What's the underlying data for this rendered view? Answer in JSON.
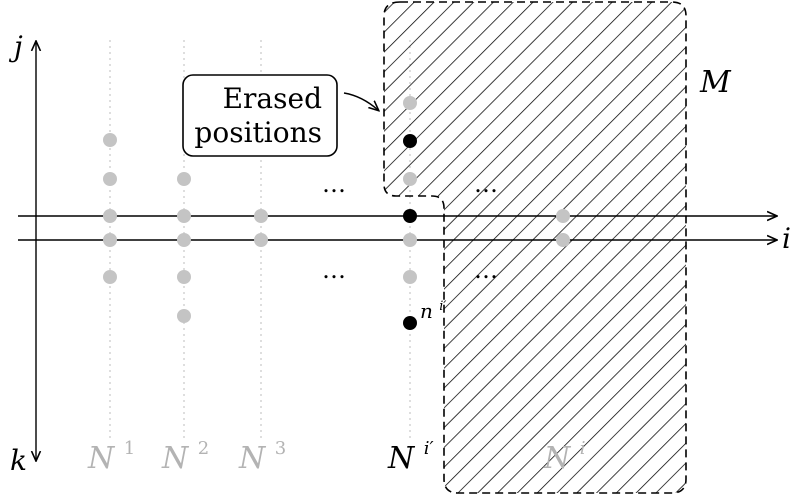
{
  "axes": {
    "j_label": "j",
    "k_label": "k",
    "i_label": "i"
  },
  "region_label": "M",
  "callout": {
    "line1": "Erased",
    "line2": "positions"
  },
  "columns": [
    {
      "base": "N",
      "sup": "1"
    },
    {
      "base": "N",
      "sup": "2"
    },
    {
      "base": "N",
      "sup": "3"
    },
    {
      "base": "N",
      "sup": "i′"
    },
    {
      "base": "N",
      "sup": "i"
    }
  ],
  "point_label": {
    "base": "n",
    "sup": "i′"
  },
  "ellipsis": "…",
  "colors": {
    "ink": "#000000",
    "grey_dot": "#c4c4c4",
    "grey_text": "#b3b3b3",
    "black_dot": "#000000"
  }
}
